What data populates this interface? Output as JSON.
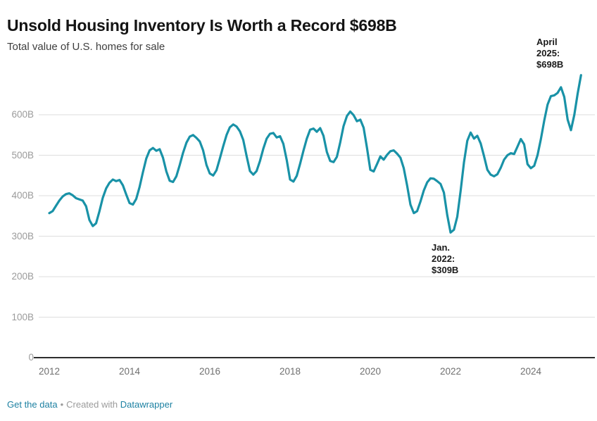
{
  "header": {
    "title": "Unsold Housing Inventory Is Worth a Record $698B",
    "subtitle": "Total value of U.S. homes for sale"
  },
  "chart_data": {
    "type": "line",
    "title": "Unsold Housing Inventory Is Worth a Record $698B",
    "subtitle": "Total value of U.S. homes for sale",
    "unit": "billions USD",
    "x_start": "2012-01",
    "x_end": "2025-04",
    "x_interval": "monthly",
    "ylim": [
      0,
      700
    ],
    "grid": "horizontal",
    "legend": "none",
    "line_color": "#1992a7",
    "values": [
      357,
      362,
      375,
      388,
      398,
      404,
      406,
      401,
      394,
      391,
      388,
      374,
      340,
      325,
      332,
      362,
      395,
      418,
      432,
      440,
      436,
      439,
      426,
      403,
      382,
      378,
      392,
      422,
      458,
      492,
      512,
      518,
      511,
      515,
      494,
      460,
      437,
      434,
      448,
      476,
      506,
      531,
      546,
      550,
      543,
      534,
      512,
      476,
      455,
      450,
      463,
      492,
      522,
      550,
      569,
      576,
      571,
      559,
      538,
      498,
      461,
      452,
      461,
      486,
      516,
      541,
      553,
      555,
      544,
      547,
      528,
      488,
      440,
      435,
      449,
      479,
      511,
      541,
      563,
      566,
      558,
      567,
      548,
      508,
      486,
      483,
      496,
      532,
      572,
      597,
      608,
      599,
      584,
      588,
      568,
      518,
      464,
      460,
      478,
      497,
      489,
      501,
      510,
      512,
      504,
      494,
      468,
      425,
      378,
      357,
      362,
      386,
      413,
      433,
      443,
      442,
      436,
      429,
      408,
      352,
      309,
      316,
      348,
      412,
      482,
      536,
      556,
      541,
      548,
      529,
      498,
      464,
      452,
      448,
      453,
      469,
      489,
      500,
      505,
      503,
      521,
      540,
      527,
      478,
      468,
      474,
      500,
      540,
      585,
      625,
      646,
      648,
      654,
      668,
      644,
      588,
      562,
      600,
      652,
      698
    ],
    "y_ticks": [
      {
        "v": 0,
        "label": "0"
      },
      {
        "v": 100,
        "label": "100B"
      },
      {
        "v": 200,
        "label": "200B"
      },
      {
        "v": 300,
        "label": "300B"
      },
      {
        "v": 400,
        "label": "400B"
      },
      {
        "v": 500,
        "label": "500B"
      },
      {
        "v": 600,
        "label": "600B"
      }
    ],
    "x_ticks": [
      {
        "year": 2012,
        "label": "2012"
      },
      {
        "year": 2014,
        "label": "2014"
      },
      {
        "year": 2016,
        "label": "2016"
      },
      {
        "year": 2018,
        "label": "2018"
      },
      {
        "year": 2020,
        "label": "2020"
      },
      {
        "year": 2022,
        "label": "2022"
      },
      {
        "year": 2024,
        "label": "2024"
      }
    ],
    "annotations": [
      {
        "id": "record-peak",
        "date": "2025-04",
        "value": 698,
        "lines": [
          "April",
          "2025:",
          "$698B"
        ]
      },
      {
        "id": "low-point",
        "date": "2022-01",
        "value": 309,
        "lines": [
          "Jan.",
          "2022:",
          "$309B"
        ]
      }
    ]
  },
  "footer": {
    "get_data_label": "Get the data",
    "separator": "•",
    "created_with": "Created with",
    "tool_label": "Datawrapper"
  },
  "colors": {
    "line": "#1992a7",
    "grid": "#dddddd",
    "axis": "#2e2e2e",
    "link": "#1d81a2"
  }
}
